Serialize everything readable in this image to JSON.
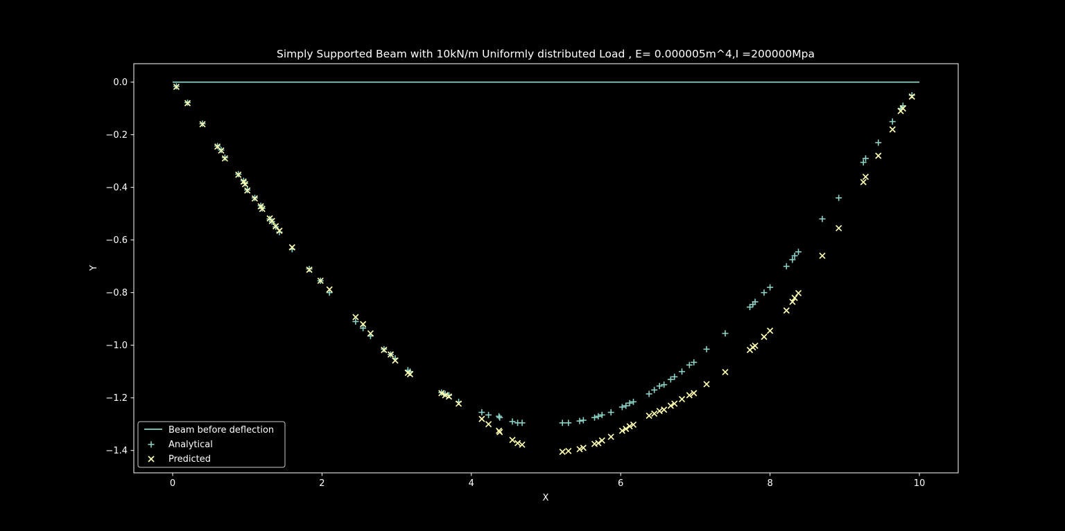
{
  "chart_data": {
    "type": "scatter",
    "title": "Simply Supported Beam with 10kN/m Uniformly distributed Load , E= 0.000005m^4,I =200000Mpa",
    "xlabel": "X",
    "ylabel": "Y",
    "xlim": [
      -0.52,
      10.52
    ],
    "ylim": [
      -1.485,
      0.07
    ],
    "xticks": [
      0,
      2,
      4,
      6,
      8,
      10
    ],
    "xtick_labels": [
      "0",
      "2",
      "4",
      "6",
      "8",
      "10"
    ],
    "yticks": [
      0.0,
      -0.2,
      -0.4,
      -0.6,
      -0.8,
      -1.0,
      -1.2,
      -1.4
    ],
    "ytick_labels": [
      "0.0",
      "−0.2",
      "−0.4",
      "−0.6",
      "−0.8",
      "−1.0",
      "−1.2",
      "−1.4"
    ],
    "grid": false,
    "legend_position": "bottom-left",
    "colors": {
      "background": "#000000",
      "foreground": "#ffffff",
      "beam": "#8dd3c7",
      "analytical": "#8dd3c7",
      "predicted": "#ffffb3"
    },
    "series": [
      {
        "name": "Beam before deflection",
        "kind": "line",
        "x": [
          0,
          10
        ],
        "y": [
          0,
          0
        ]
      },
      {
        "name": "Analytical",
        "kind": "scatter",
        "marker": "plus",
        "x": [
          0.05,
          0.2,
          0.4,
          0.6,
          0.65,
          0.7,
          0.88,
          0.95,
          0.97,
          1.0,
          1.1,
          1.18,
          1.2,
          1.3,
          1.33,
          1.38,
          1.43,
          1.6,
          1.83,
          1.98,
          2.1,
          2.45,
          2.55,
          2.65,
          2.83,
          2.92,
          2.98,
          3.15,
          3.18,
          3.6,
          3.65,
          3.7,
          3.83,
          4.14,
          4.23,
          4.37,
          4.38,
          4.55,
          4.62,
          4.68,
          5.22,
          5.3,
          5.45,
          5.5,
          5.65,
          5.7,
          5.75,
          5.87,
          6.02,
          6.07,
          6.12,
          6.17,
          6.38,
          6.45,
          6.52,
          6.58,
          6.67,
          6.72,
          6.82,
          6.92,
          6.98,
          7.15,
          7.4,
          7.73,
          7.77,
          7.8,
          7.92,
          8.0,
          8.22,
          8.3,
          8.33,
          8.38,
          8.7,
          8.92,
          9.25,
          9.28,
          9.45,
          9.64,
          9.75,
          9.78,
          9.9
        ],
        "y": [
          -0.016,
          -0.078,
          -0.158,
          -0.243,
          -0.258,
          -0.287,
          -0.35,
          -0.375,
          -0.385,
          -0.41,
          -0.44,
          -0.47,
          -0.48,
          -0.52,
          -0.53,
          -0.55,
          -0.57,
          -0.635,
          -0.71,
          -0.755,
          -0.8,
          -0.91,
          -0.935,
          -0.965,
          -1.015,
          -1.035,
          -1.05,
          -1.095,
          -1.1,
          -1.18,
          -1.185,
          -1.19,
          -1.215,
          -1.255,
          -1.265,
          -1.27,
          -1.275,
          -1.29,
          -1.295,
          -1.295,
          -1.295,
          -1.295,
          -1.288,
          -1.285,
          -1.275,
          -1.27,
          -1.265,
          -1.255,
          -1.235,
          -1.23,
          -1.22,
          -1.215,
          -1.185,
          -1.17,
          -1.155,
          -1.15,
          -1.13,
          -1.12,
          -1.1,
          -1.075,
          -1.065,
          -1.015,
          -0.955,
          -0.855,
          -0.845,
          -0.835,
          -0.8,
          -0.78,
          -0.7,
          -0.675,
          -0.66,
          -0.645,
          -0.52,
          -0.44,
          -0.305,
          -0.29,
          -0.23,
          -0.15,
          -0.1,
          -0.09,
          -0.05
        ]
      },
      {
        "name": "Predicted",
        "kind": "scatter",
        "marker": "x",
        "x": [
          0.05,
          0.2,
          0.4,
          0.6,
          0.65,
          0.7,
          0.88,
          0.95,
          0.97,
          1.0,
          1.1,
          1.18,
          1.2,
          1.3,
          1.33,
          1.38,
          1.43,
          1.6,
          1.83,
          1.98,
          2.1,
          2.45,
          2.55,
          2.65,
          2.83,
          2.92,
          2.98,
          3.15,
          3.18,
          3.6,
          3.65,
          3.7,
          3.83,
          4.14,
          4.23,
          4.37,
          4.38,
          4.55,
          4.62,
          4.68,
          5.22,
          5.3,
          5.45,
          5.5,
          5.65,
          5.7,
          5.75,
          5.87,
          6.02,
          6.07,
          6.12,
          6.17,
          6.38,
          6.45,
          6.52,
          6.58,
          6.67,
          6.72,
          6.82,
          6.92,
          6.98,
          7.15,
          7.4,
          7.73,
          7.77,
          7.8,
          7.92,
          8.0,
          8.22,
          8.3,
          8.33,
          8.38,
          8.7,
          8.92,
          9.25,
          9.28,
          9.45,
          9.64,
          9.75,
          9.78,
          9.9
        ],
        "y": [
          -0.018,
          -0.08,
          -0.16,
          -0.245,
          -0.26,
          -0.29,
          -0.352,
          -0.378,
          -0.388,
          -0.412,
          -0.442,
          -0.472,
          -0.482,
          -0.518,
          -0.528,
          -0.548,
          -0.565,
          -0.628,
          -0.713,
          -0.755,
          -0.788,
          -0.893,
          -0.92,
          -0.955,
          -1.018,
          -1.035,
          -1.058,
          -1.105,
          -1.11,
          -1.182,
          -1.19,
          -1.195,
          -1.222,
          -1.28,
          -1.3,
          -1.325,
          -1.33,
          -1.36,
          -1.372,
          -1.378,
          -1.405,
          -1.402,
          -1.395,
          -1.39,
          -1.375,
          -1.372,
          -1.362,
          -1.348,
          -1.325,
          -1.318,
          -1.308,
          -1.302,
          -1.268,
          -1.26,
          -1.25,
          -1.245,
          -1.23,
          -1.222,
          -1.205,
          -1.19,
          -1.182,
          -1.148,
          -1.102,
          -1.018,
          -1.008,
          -1.002,
          -0.968,
          -0.945,
          -0.868,
          -0.835,
          -0.82,
          -0.802,
          -0.66,
          -0.555,
          -0.38,
          -0.36,
          -0.28,
          -0.18,
          -0.11,
          -0.1,
          -0.055
        ]
      }
    ]
  }
}
